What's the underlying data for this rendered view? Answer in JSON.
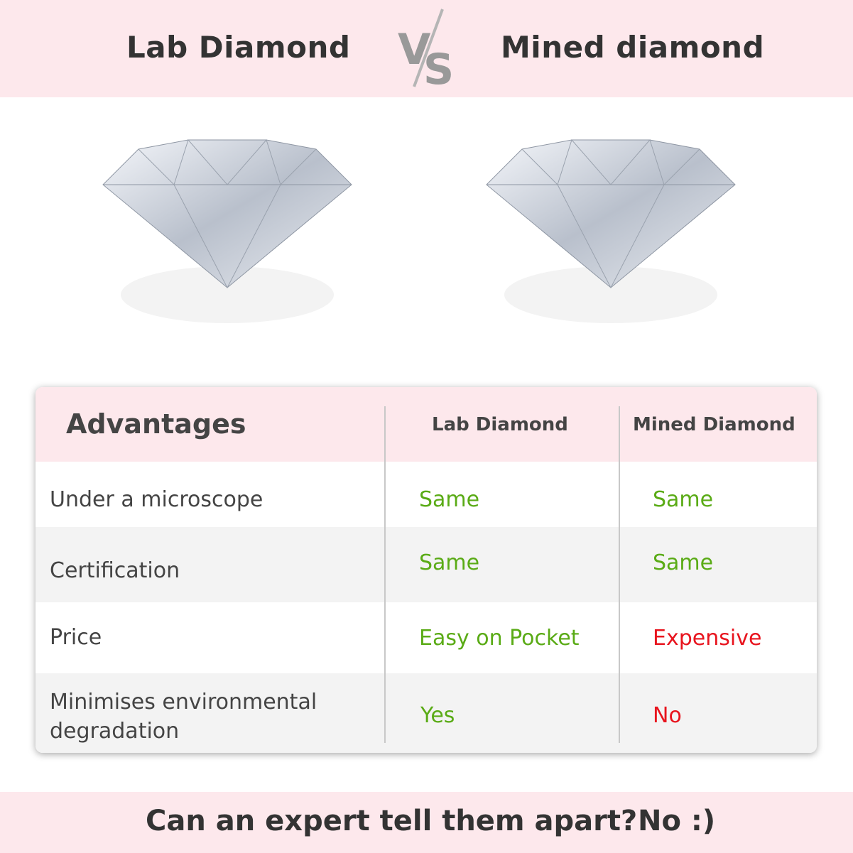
{
  "header": {
    "left_title": "Lab Diamond",
    "vs": "VS",
    "right_title": "Mined diamond"
  },
  "table": {
    "headers": [
      "Advantages",
      "Lab Diamond",
      "Mined Diamond"
    ],
    "rows": [
      {
        "label": "Under a microscope",
        "lab": "Same",
        "mined": "Same"
      },
      {
        "label": "Certification",
        "lab": "Same",
        "mined": "Same"
      },
      {
        "label": "Price",
        "lab": "Easy on Pocket",
        "mined": "Expensive"
      },
      {
        "label": "Minimises environmental degradation",
        "lab": "Yes",
        "mined": "No"
      }
    ]
  },
  "footer": {
    "question": "Can an expert tell them apart?",
    "answer": "No :)"
  },
  "colors": {
    "band": "#fde8ec",
    "positive": "#5aab16",
    "negative": "#e8141e"
  }
}
